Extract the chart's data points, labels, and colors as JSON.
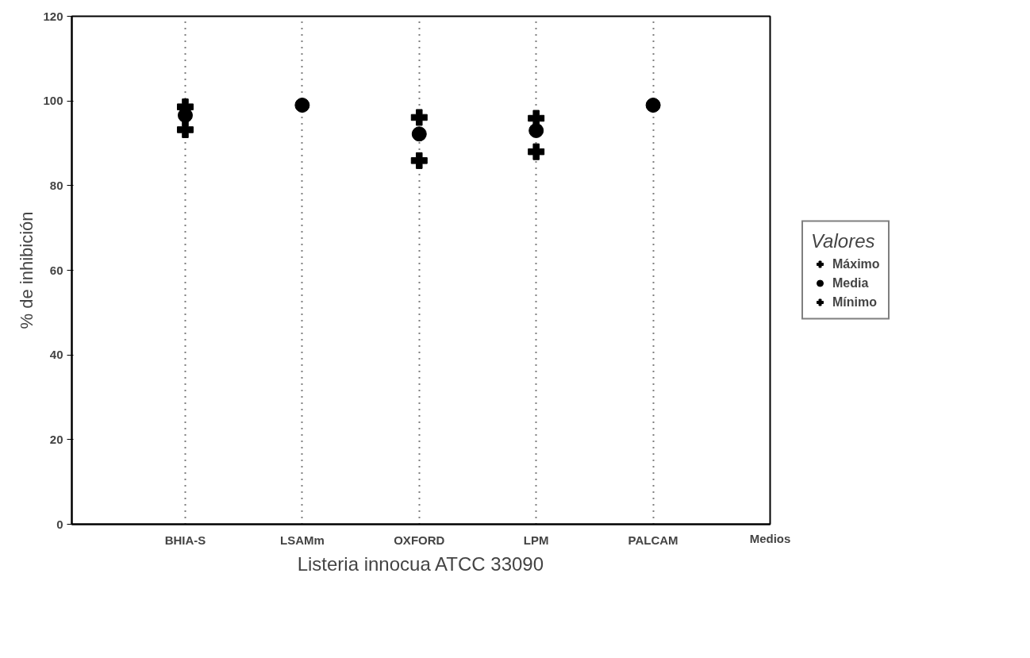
{
  "chart_data": {
    "type": "scatter",
    "title": "Listeria innocua ATCC 33090",
    "xlabel": "Medios",
    "ylabel": "% de inhibición",
    "legend_title": "Valores",
    "categories": [
      "BHIA-S",
      "LSAMm",
      "OXFORD",
      "LPM",
      "PALCAM"
    ],
    "series": [
      {
        "name": "Máximo",
        "color": "#000000",
        "marker": "cross",
        "values": [
          98.6,
          null,
          96.1,
          95.9,
          null
        ]
      },
      {
        "name": "Media",
        "color": "#000000",
        "marker": "circle",
        "values": [
          96.6,
          99,
          92.2,
          93.0,
          99
        ]
      },
      {
        "name": "Mínimo",
        "color": "#000000",
        "marker": "cross",
        "values": [
          93.2,
          null,
          85.9,
          88.0,
          null
        ]
      }
    ],
    "ylim": [
      0,
      120
    ],
    "yticks": [
      0,
      20,
      40,
      60,
      80,
      100,
      120
    ],
    "grid": "x",
    "legend": "right"
  }
}
